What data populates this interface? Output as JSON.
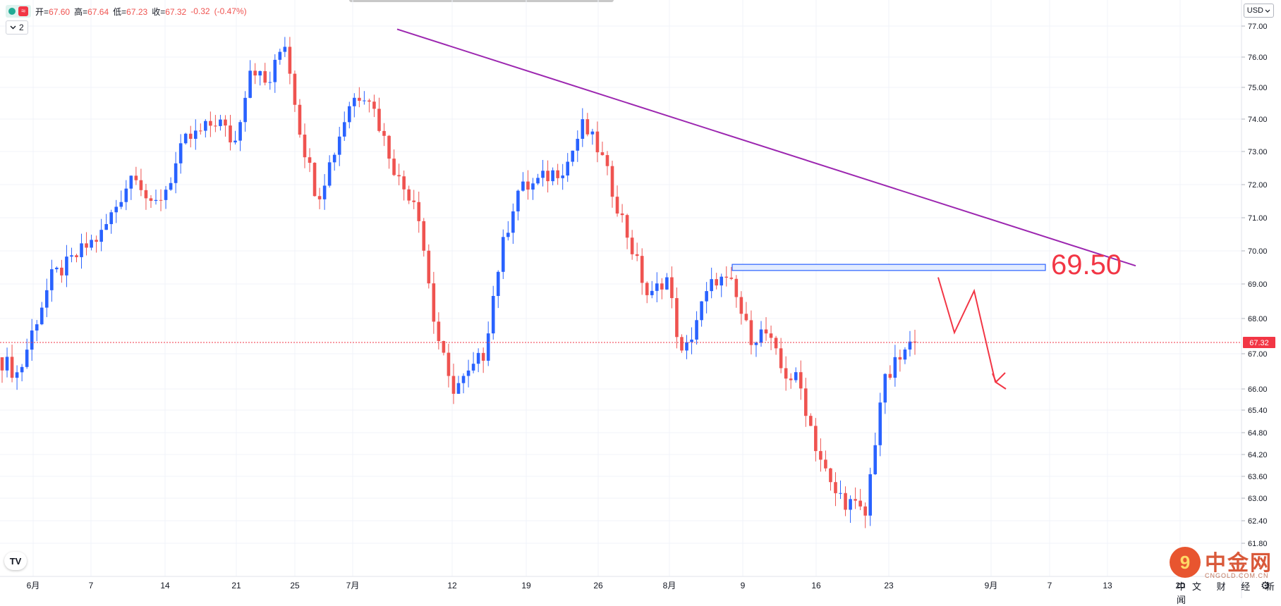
{
  "legend": {
    "wave_icon": "≈",
    "open_label": "开=",
    "open": "67.60",
    "high_label": "高=",
    "high": "67.64",
    "low_label": "低=",
    "low": "67.23",
    "close_label": "收=",
    "close": "67.32",
    "change": "-0.32",
    "change_pct": "(-0.47%)"
  },
  "indicator_toggle": {
    "icon": "chevron-down-icon",
    "count": "2"
  },
  "currency": {
    "label": "USD",
    "icon": "chevron-down-icon"
  },
  "current_price_label": "67.32",
  "annotation_price": "69.50",
  "watermark": {
    "name": "中金网",
    "url": "CNGOLD.COM.CN",
    "logo_glyph": "9"
  },
  "bottom_tags": "中文 财 经 新 闻",
  "colors": {
    "up": "#2962ff",
    "down": "#ef5350",
    "trendline": "#9c27b0",
    "zone_border": "#2962ff",
    "annotation": "#f23645",
    "grid": "#f0f3fa",
    "price_line": "#f23645"
  },
  "chart_data": {
    "type": "candlestick",
    "currency": "USD",
    "ylim": [
      61.3,
      77.3
    ],
    "y_axis_ticks": [
      "77.00",
      "76.00",
      "75.00",
      "74.00",
      "73.00",
      "72.00",
      "71.00",
      "70.00",
      "69.00",
      "68.00",
      "67.00",
      "66.00",
      "65.40",
      "64.80",
      "64.20",
      "63.60",
      "63.00",
      "62.40",
      "61.80"
    ],
    "x_axis_labels": [
      "6月",
      "7",
      "14",
      "21",
      "25",
      "7月",
      "12",
      "19",
      "26",
      "8月",
      "9",
      "16",
      "23",
      "9月",
      "7",
      "13",
      "20"
    ],
    "last_price": 67.32,
    "close_path": [
      {
        "date": "6月",
        "close": 66.8
      },
      {
        "date": "6月-1",
        "close": 66.4
      },
      {
        "date": "6月-3",
        "close": 67.9
      },
      {
        "date": "7",
        "close": 69.2
      },
      {
        "date": "9",
        "close": 69.6
      },
      {
        "date": "11",
        "close": 70.1
      },
      {
        "date": "14",
        "close": 70.5
      },
      {
        "date": "17",
        "close": 71.5
      },
      {
        "date": "19",
        "close": 72.5
      },
      {
        "date": "20",
        "close": 71.2
      },
      {
        "date": "21",
        "close": 72.0
      },
      {
        "date": "22",
        "close": 73.3
      },
      {
        "date": "25",
        "close": 73.6
      },
      {
        "date": "28",
        "close": 74.0
      },
      {
        "date": "30",
        "close": 73.2
      },
      {
        "date": "7月",
        "close": 75.8
      },
      {
        "date": "7月-2",
        "close": 75.0
      },
      {
        "date": "7月-3",
        "close": 76.6
      },
      {
        "date": "7月-4",
        "close": 73.5
      },
      {
        "date": "7月-5",
        "close": 71.6
      },
      {
        "date": "7月-6",
        "close": 73.0
      },
      {
        "date": "12",
        "close": 74.6
      },
      {
        "date": "13",
        "close": 74.9
      },
      {
        "date": "14",
        "close": 73.4
      },
      {
        "date": "15",
        "close": 72.0
      },
      {
        "date": "16",
        "close": 71.5
      },
      {
        "date": "18",
        "close": 68.0
      },
      {
        "date": "19",
        "close": 66.0
      },
      {
        "date": "20",
        "close": 66.3
      },
      {
        "date": "21",
        "close": 67.0
      },
      {
        "date": "22",
        "close": 69.8
      },
      {
        "date": "23",
        "close": 71.8
      },
      {
        "date": "26",
        "close": 72.0
      },
      {
        "date": "27",
        "close": 72.3
      },
      {
        "date": "28",
        "close": 72.6
      },
      {
        "date": "29",
        "close": 73.8
      },
      {
        "date": "8月",
        "close": 73.0
      },
      {
        "date": "8月-1",
        "close": 71.5
      },
      {
        "date": "8月-2",
        "close": 70.0
      },
      {
        "date": "8月-3",
        "close": 68.5
      },
      {
        "date": "9",
        "close": 69.3
      },
      {
        "date": "10",
        "close": 66.8
      },
      {
        "date": "11",
        "close": 68.2
      },
      {
        "date": "12",
        "close": 69.2
      },
      {
        "date": "13",
        "close": 68.9
      },
      {
        "date": "14",
        "close": 67.5
      },
      {
        "date": "16",
        "close": 67.6
      },
      {
        "date": "17",
        "close": 66.5
      },
      {
        "date": "18",
        "close": 66.2
      },
      {
        "date": "19",
        "close": 64.5
      },
      {
        "date": "20",
        "close": 63.2
      },
      {
        "date": "21",
        "close": 62.9
      },
      {
        "date": "22",
        "close": 62.5
      },
      {
        "date": "23",
        "close": 66.0
      },
      {
        "date": "24",
        "close": 66.8
      },
      {
        "date": "25",
        "close": 67.32
      }
    ],
    "trendline": {
      "from": {
        "date": "7月-3",
        "price": 76.9
      },
      "to": {
        "date": "9月+13",
        "price": 69.55
      }
    },
    "resistance_zone": {
      "price_low": 69.45,
      "price_high": 69.55,
      "label": "69.50"
    },
    "projection_path": [
      67.32,
      69.2,
      67.6,
      68.8,
      66.0
    ]
  }
}
